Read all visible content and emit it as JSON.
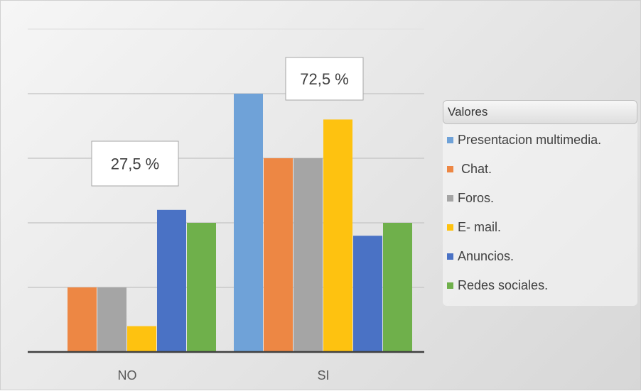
{
  "chart_data": {
    "type": "bar",
    "categories": [
      "NO",
      "SI"
    ],
    "series": [
      {
        "name": "Presentacion multimedia.",
        "color": "#6fa2d8",
        "values": [
          0,
          4
        ]
      },
      {
        "name": " Chat.",
        "color": "#ed8744",
        "values": [
          1,
          3
        ]
      },
      {
        "name": "Foros.",
        "color": "#a5a5a5",
        "values": [
          1,
          3
        ]
      },
      {
        "name": "E- mail.",
        "color": "#fec210",
        "values": [
          0.4,
          3.6
        ]
      },
      {
        "name": "Anuncios.",
        "color": "#4a72c5",
        "values": [
          2.2,
          1.8
        ]
      },
      {
        "name": "Redes sociales.",
        "color": "#6fb04b",
        "values": [
          2,
          2
        ]
      }
    ],
    "ylim": [
      0,
      5
    ],
    "grid": true,
    "legend_position": "right",
    "legend_title": "Valores",
    "annotations": [
      {
        "text": "27,5 %",
        "category": "NO"
      },
      {
        "text": "72,5 %",
        "category": "SI"
      }
    ]
  }
}
